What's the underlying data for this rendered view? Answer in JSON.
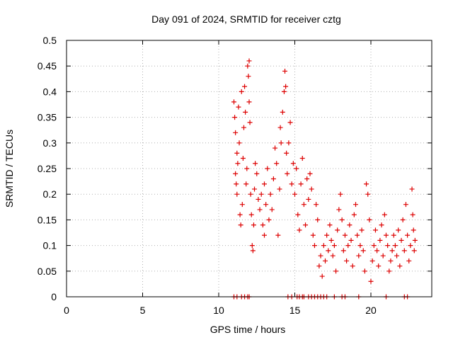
{
  "chart_data": {
    "type": "scatter",
    "title": "Day 091 of 2024, SRMTID for receiver cztg",
    "xlabel": "GPS time / hours",
    "ylabel": "SRMTID / TECUs",
    "xlim": [
      0,
      24
    ],
    "ylim": [
      0,
      0.5
    ],
    "xticks": [
      "0",
      "5",
      "10",
      "15",
      "20"
    ],
    "xtick_values": [
      0,
      5,
      10,
      15,
      20
    ],
    "yticks": [
      "0",
      "0.05",
      "0.1",
      "0.15",
      "0.2",
      "0.25",
      "0.3",
      "0.35",
      "0.4",
      "0.45",
      "0.5"
    ],
    "ytick_values": [
      0,
      0.05,
      0.1,
      0.15,
      0.2,
      0.25,
      0.3,
      0.35,
      0.4,
      0.45,
      0.5
    ],
    "grid": true,
    "marker": "+",
    "series": [
      {
        "color": "#dd0000",
        "points": [
          [
            11.0,
            0.38
          ],
          [
            11.05,
            0.35
          ],
          [
            11.1,
            0.32
          ],
          [
            11.1,
            0.24
          ],
          [
            11.15,
            0.22
          ],
          [
            11.2,
            0.2
          ],
          [
            11.2,
            0.28
          ],
          [
            11.25,
            0.26
          ],
          [
            11.3,
            0.37
          ],
          [
            11.35,
            0.3
          ],
          [
            11.4,
            0.16
          ],
          [
            11.45,
            0.14
          ],
          [
            11.5,
            0.4
          ],
          [
            11.55,
            0.18
          ],
          [
            11.6,
            0.27
          ],
          [
            11.65,
            0.33
          ],
          [
            11.7,
            0.41
          ],
          [
            11.75,
            0.36
          ],
          [
            11.8,
            0.22
          ],
          [
            11.85,
            0.25
          ],
          [
            11.9,
            0.45
          ],
          [
            11.95,
            0.43
          ],
          [
            12.0,
            0.46
          ],
          [
            12.0,
            0.38
          ],
          [
            12.05,
            0.34
          ],
          [
            12.1,
            0.2
          ],
          [
            12.15,
            0.16
          ],
          [
            12.2,
            0.1
          ],
          [
            12.25,
            0.09
          ],
          [
            12.3,
            0.14
          ],
          [
            12.35,
            0.21
          ],
          [
            12.4,
            0.26
          ],
          [
            12.5,
            0.24
          ],
          [
            12.6,
            0.19
          ],
          [
            12.7,
            0.17
          ],
          [
            12.8,
            0.2
          ],
          [
            12.9,
            0.14
          ],
          [
            13.0,
            0.12
          ],
          [
            13.0,
            0.22
          ],
          [
            13.1,
            0.18
          ],
          [
            13.2,
            0.25
          ],
          [
            13.3,
            0.15
          ],
          [
            13.4,
            0.2
          ],
          [
            13.5,
            0.17
          ],
          [
            13.6,
            0.23
          ],
          [
            13.7,
            0.29
          ],
          [
            13.8,
            0.26
          ],
          [
            13.9,
            0.12
          ],
          [
            14.0,
            0.21
          ],
          [
            14.05,
            0.33
          ],
          [
            14.1,
            0.3
          ],
          [
            14.2,
            0.36
          ],
          [
            14.3,
            0.4
          ],
          [
            14.35,
            0.44
          ],
          [
            14.4,
            0.41
          ],
          [
            14.45,
            0.28
          ],
          [
            14.5,
            0.24
          ],
          [
            14.6,
            0.3
          ],
          [
            14.7,
            0.34
          ],
          [
            14.8,
            0.22
          ],
          [
            14.9,
            0.26
          ],
          [
            15.0,
            0.2
          ],
          [
            15.1,
            0.25
          ],
          [
            15.2,
            0.16
          ],
          [
            15.3,
            0.13
          ],
          [
            15.4,
            0.22
          ],
          [
            15.5,
            0.27
          ],
          [
            15.6,
            0.18
          ],
          [
            15.7,
            0.14
          ],
          [
            15.8,
            0.23
          ],
          [
            15.9,
            0.19
          ],
          [
            16.0,
            0.24
          ],
          [
            16.1,
            0.21
          ],
          [
            16.2,
            0.12
          ],
          [
            16.3,
            0.1
          ],
          [
            16.4,
            0.18
          ],
          [
            16.5,
            0.15
          ],
          [
            16.6,
            0.06
          ],
          [
            16.7,
            0.08
          ],
          [
            16.8,
            0.04
          ],
          [
            16.9,
            0.1
          ],
          [
            17.0,
            0.07
          ],
          [
            17.1,
            0.12
          ],
          [
            17.2,
            0.09
          ],
          [
            17.3,
            0.14
          ],
          [
            17.4,
            0.11
          ],
          [
            17.5,
            0.08
          ],
          [
            17.6,
            0.1
          ],
          [
            17.7,
            0.05
          ],
          [
            17.8,
            0.13
          ],
          [
            17.9,
            0.17
          ],
          [
            18.0,
            0.2
          ],
          [
            18.1,
            0.15
          ],
          [
            18.2,
            0.09
          ],
          [
            18.3,
            0.12
          ],
          [
            18.4,
            0.07
          ],
          [
            18.5,
            0.1
          ],
          [
            18.6,
            0.14
          ],
          [
            18.7,
            0.11
          ],
          [
            18.8,
            0.06
          ],
          [
            18.9,
            0.16
          ],
          [
            19.0,
            0.18
          ],
          [
            19.1,
            0.12
          ],
          [
            19.2,
            0.08
          ],
          [
            19.3,
            0.1
          ],
          [
            19.4,
            0.13
          ],
          [
            19.5,
            0.09
          ],
          [
            19.6,
            0.05
          ],
          [
            19.7,
            0.22
          ],
          [
            19.8,
            0.2
          ],
          [
            19.9,
            0.15
          ],
          [
            20.0,
            0.03
          ],
          [
            20.1,
            0.07
          ],
          [
            20.2,
            0.1
          ],
          [
            20.3,
            0.13
          ],
          [
            20.4,
            0.09
          ],
          [
            20.5,
            0.06
          ],
          [
            20.6,
            0.11
          ],
          [
            20.7,
            0.14
          ],
          [
            20.8,
            0.08
          ],
          [
            20.9,
            0.16
          ],
          [
            21.0,
            0.12
          ],
          [
            21.1,
            0.1
          ],
          [
            21.2,
            0.05
          ],
          [
            21.3,
            0.07
          ],
          [
            21.4,
            0.09
          ],
          [
            21.5,
            0.12
          ],
          [
            21.6,
            0.1
          ],
          [
            21.7,
            0.08
          ],
          [
            21.8,
            0.13
          ],
          [
            21.9,
            0.06
          ],
          [
            22.0,
            0.11
          ],
          [
            22.1,
            0.15
          ],
          [
            22.2,
            0.09
          ],
          [
            22.3,
            0.18
          ],
          [
            22.4,
            0.12
          ],
          [
            22.5,
            0.07
          ],
          [
            22.6,
            0.1
          ],
          [
            22.7,
            0.21
          ],
          [
            22.75,
            0.16
          ],
          [
            22.8,
            0.13
          ],
          [
            22.85,
            0.09
          ],
          [
            22.9,
            0.11
          ],
          [
            11.0,
            0.0
          ],
          [
            11.2,
            0.0
          ],
          [
            11.5,
            0.0
          ],
          [
            11.7,
            0.0
          ],
          [
            11.9,
            0.0
          ],
          [
            12.0,
            0.0
          ],
          [
            14.55,
            0.0
          ],
          [
            14.8,
            0.0
          ],
          [
            15.15,
            0.0
          ],
          [
            15.3,
            0.0
          ],
          [
            15.5,
            0.0
          ],
          [
            15.6,
            0.0
          ],
          [
            15.9,
            0.0
          ],
          [
            16.1,
            0.0
          ],
          [
            16.3,
            0.0
          ],
          [
            16.5,
            0.0
          ],
          [
            16.7,
            0.0
          ],
          [
            16.9,
            0.0
          ],
          [
            17.1,
            0.0
          ],
          [
            17.6,
            0.0
          ],
          [
            18.1,
            0.0
          ],
          [
            18.3,
            0.0
          ],
          [
            19.2,
            0.0
          ],
          [
            21.0,
            0.0
          ],
          [
            22.2,
            0.0
          ],
          [
            22.4,
            0.0
          ]
        ]
      }
    ]
  }
}
